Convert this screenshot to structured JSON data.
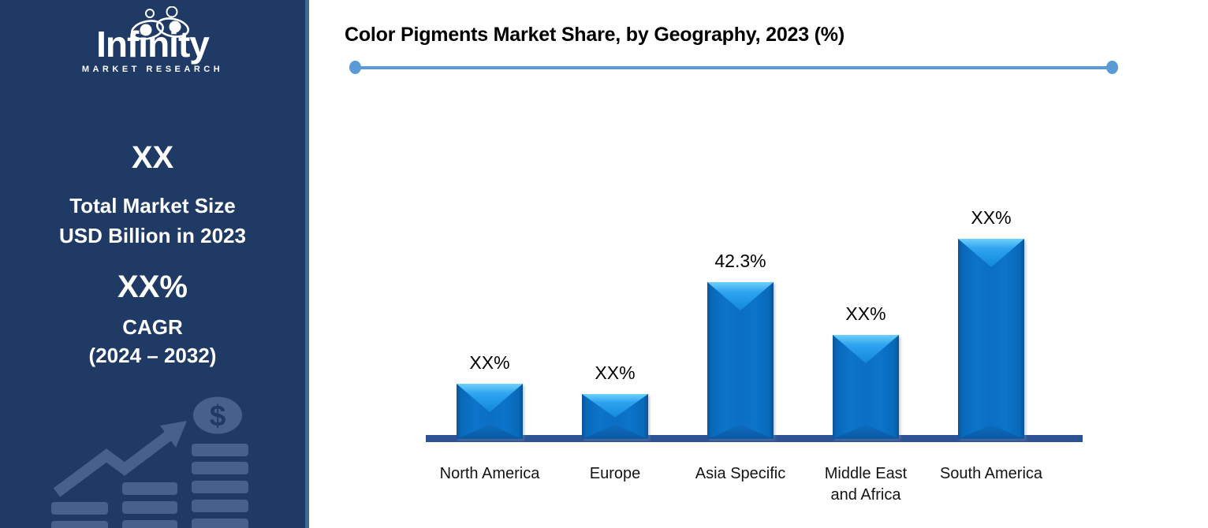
{
  "sidebar": {
    "logo": {
      "brand": "Infinity",
      "tagline": "MARKET RESEARCH"
    },
    "market_size": {
      "value": "XX",
      "line1": "Total Market Size",
      "line2": "USD Billion in 2023"
    },
    "cagr": {
      "value": "XX%",
      "line1": "CAGR",
      "line2": "(2024 – 2032)"
    },
    "watermark_dollar": "$"
  },
  "chart": {
    "title": "Color Pigments Market Share, by Geography, 2023 (%)"
  },
  "chart_data": {
    "type": "bar",
    "title": "Color Pigments Market Share, by Geography, 2023 (%)",
    "categories": [
      "North America",
      "Europe",
      "Asia Specific",
      "Middle East and Africa",
      "South America"
    ],
    "values_displayed": [
      "XX%",
      "XX%",
      "42.3%",
      "XX%",
      "XX%"
    ],
    "values_estimated_pct": [
      14.9,
      12.1,
      42.3,
      28.1,
      54.0
    ],
    "xlabel": "",
    "ylabel": "",
    "legend": false,
    "grid": false,
    "bar_color": "#0B6FC4",
    "axis_color": "#2E5395",
    "accent_color": "#5B9BD5",
    "sidebar_color": "#203A66"
  }
}
